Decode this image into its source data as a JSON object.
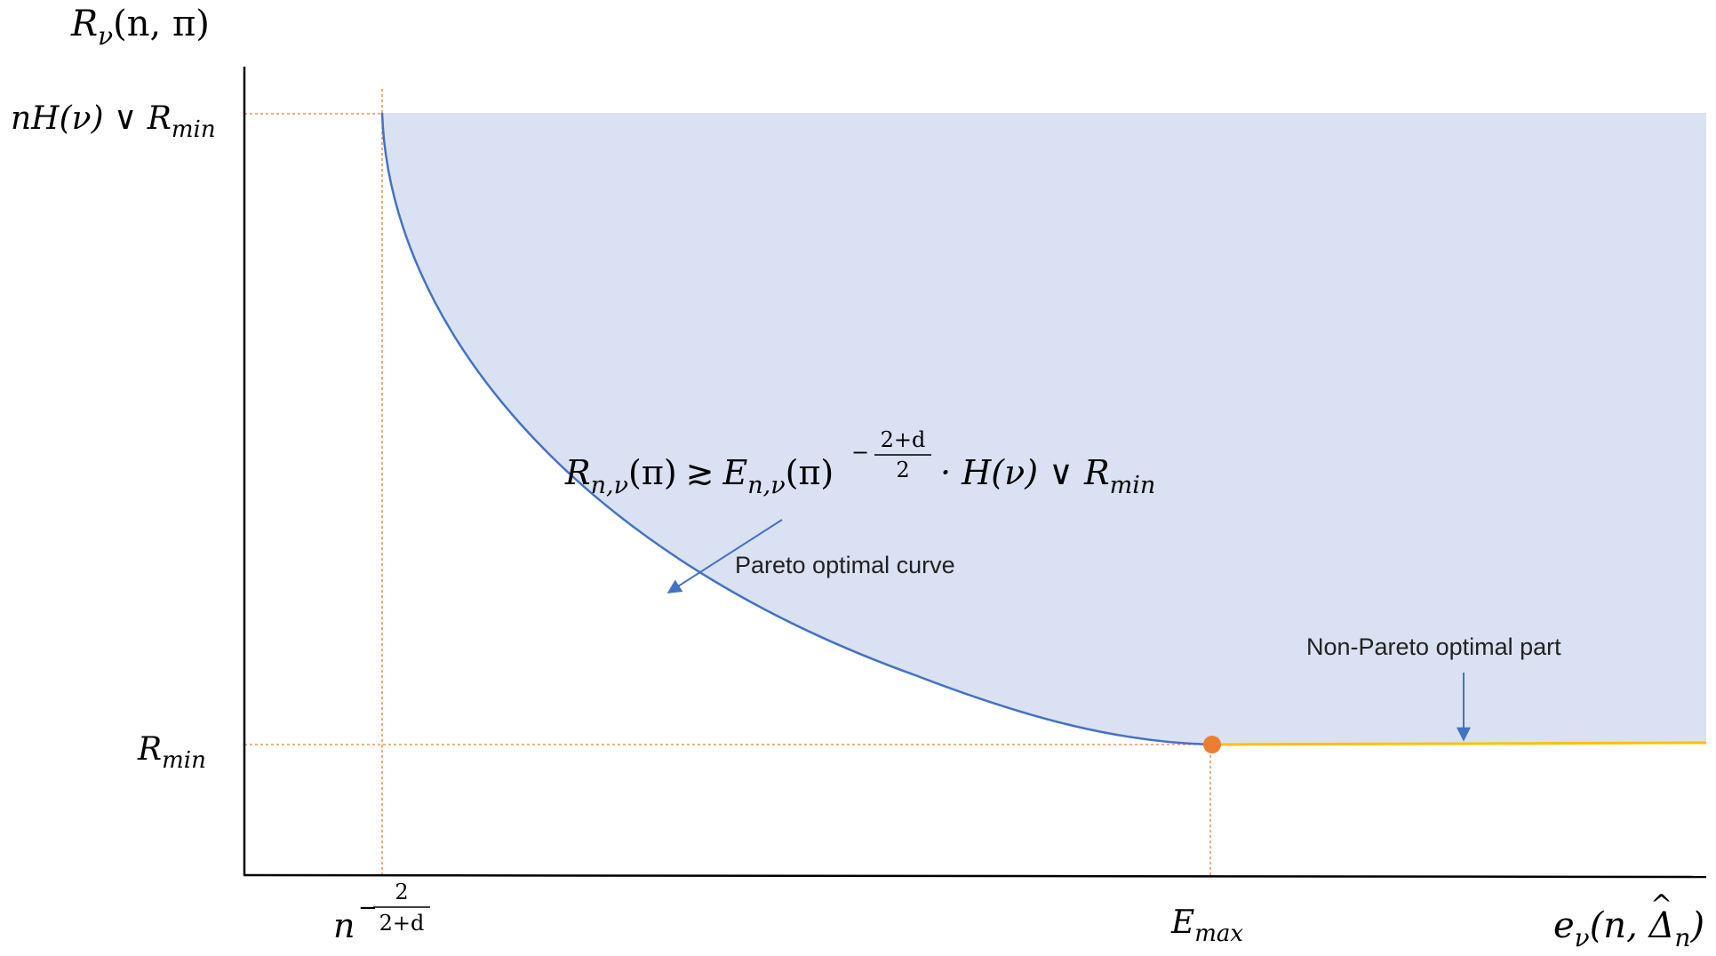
{
  "axes": {
    "y_label": {
      "R": "R",
      "sub": "ν",
      "args": "(n, π)"
    },
    "x_label": {
      "e": "e",
      "sub": "ν",
      "args_open": "(n, ",
      "delta": "Δ",
      "hat": "^",
      "delta_sub": "n",
      "args_close": ")"
    }
  },
  "y_ticks": {
    "top": {
      "main": "nH(ν) ∨ R",
      "sub": "min"
    },
    "rmin": {
      "main": "R",
      "sub": "min"
    }
  },
  "x_ticks": {
    "n_power": {
      "base": "n",
      "minus": "−",
      "num": "2",
      "den": "2+d"
    },
    "emax": {
      "main": "E",
      "sub": "max"
    }
  },
  "formula": {
    "lhs": "R",
    "lhs_sub": "n,ν",
    "lhs_arg": "(π)",
    "rel": "≳",
    "E": "E",
    "E_sub": "n,ν",
    "E_arg": "(π)",
    "exp_minus": "−",
    "exp_num": "2+d",
    "exp_den": "2",
    "rest": "· H(ν) ∨ R",
    "rest_sub": "min"
  },
  "annotations": {
    "pareto": "Pareto optimal curve",
    "non_pareto": "Non-Pareto optimal part"
  },
  "colors": {
    "fill": "#dae1f2",
    "curve": "#4472c4",
    "flat": "#ffc000",
    "point": "#ed7d31",
    "guide": "#ed7d31",
    "axis": "#000000"
  }
}
